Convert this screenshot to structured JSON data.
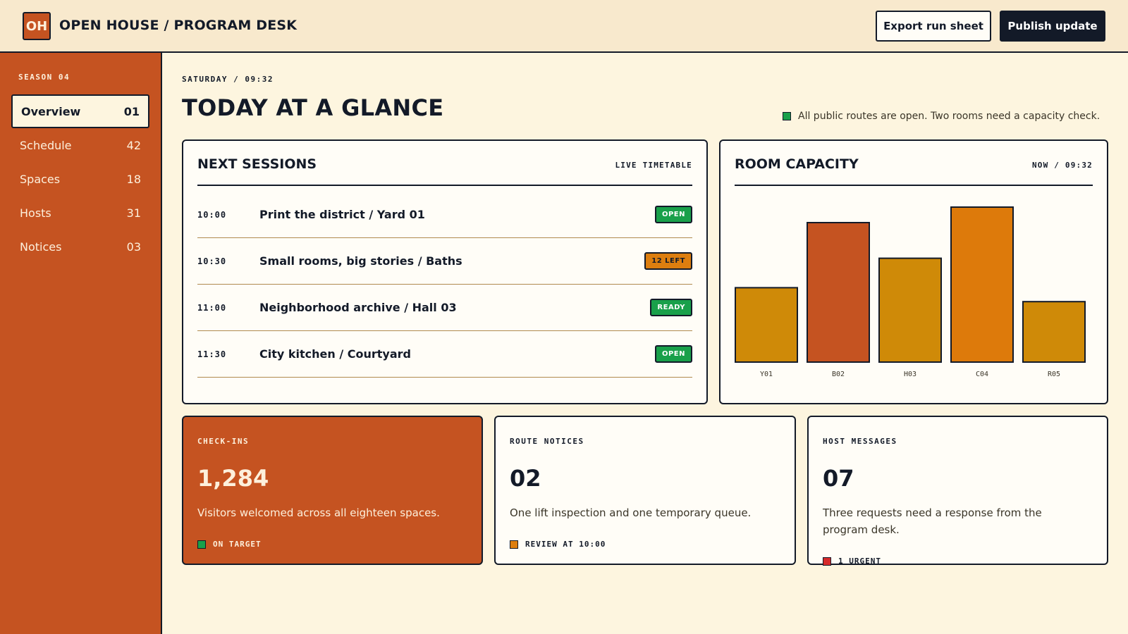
{
  "app": {
    "logo_text": "OH",
    "title": "OPEN HOUSE / PROGRAM DESK"
  },
  "header": {
    "export_label": "Export run sheet",
    "publish_label": "Publish update"
  },
  "sidebar": {
    "season": "SEASON 04",
    "items": [
      {
        "label": "Overview",
        "count": "01",
        "active": true
      },
      {
        "label": "Schedule",
        "count": "42"
      },
      {
        "label": "Spaces",
        "count": "18"
      },
      {
        "label": "Hosts",
        "count": "31"
      },
      {
        "label": "Notices",
        "count": "03"
      }
    ]
  },
  "main": {
    "kicker": "SATURDAY / 09:32",
    "title": "TODAY AT A GLANCE",
    "status": "All public routes are open. Two rooms need a capacity check.",
    "status_color": "#19a04a"
  },
  "sessions": {
    "title": "NEXT SESSIONS",
    "tag": "LIVE TIMETABLE",
    "rows": [
      {
        "time": "10:00",
        "title": "Print the district / Yard 01",
        "badge": "OPEN",
        "badge_color": "green"
      },
      {
        "time": "10:30",
        "title": "Small rooms, big stories / Baths",
        "badge": "12 LEFT",
        "badge_color": "orange"
      },
      {
        "time": "11:00",
        "title": "Neighborhood archive / Hall 03",
        "badge": "READY",
        "badge_color": "green"
      },
      {
        "time": "11:30",
        "title": "City kitchen / Courtyard",
        "badge": "OPEN",
        "badge_color": "green"
      }
    ]
  },
  "capacity": {
    "title": "ROOM CAPACITY",
    "tag": "NOW / 09:32"
  },
  "chart_data": {
    "type": "bar",
    "categories": [
      "Y01",
      "B02",
      "H03",
      "C04",
      "R05"
    ],
    "values": [
      48,
      90,
      67,
      100,
      39
    ],
    "colors": [
      "#cf8a08",
      "#c55321",
      "#cf8a08",
      "#dd7a0b",
      "#cf8a08"
    ],
    "ylim": [
      0,
      100
    ],
    "grid": false,
    "title": "",
    "xlabel": "",
    "ylabel": ""
  },
  "stats": [
    {
      "label": "CHECK-INS",
      "value": "1,284",
      "desc": "Visitors welcomed across all eighteen spaces.",
      "foot": "ON TARGET",
      "foot_color": "#19a04a"
    },
    {
      "label": "ROUTE NOTICES",
      "value": "02",
      "desc": "One lift inspection and one temporary queue.",
      "foot": "REVIEW AT 10:00",
      "foot_color": "#dd7e0f"
    },
    {
      "label": "HOST MESSAGES",
      "value": "07",
      "desc": "Three requests need a response from the program desk.",
      "foot": "1 URGENT",
      "foot_color": "#d62a2a"
    }
  ]
}
